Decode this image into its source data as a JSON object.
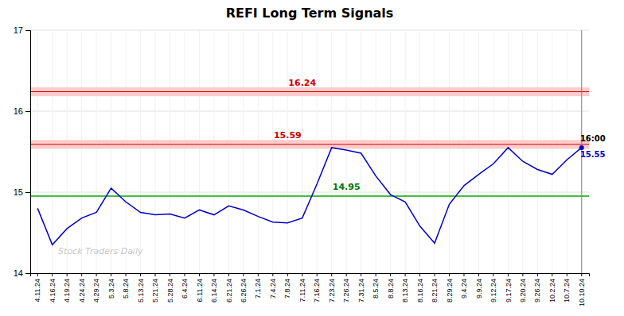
{
  "chart_data": {
    "type": "line",
    "title": "REFI Long Term Signals",
    "watermark": "Stock Traders Daily",
    "categories": [
      "4.11.24",
      "4.16.24",
      "4.19.24",
      "4.24.24",
      "4.29.24",
      "5.3.24",
      "5.8.24",
      "5.13.24",
      "5.21.24",
      "5.28.24",
      "6.4.24",
      "6.11.24",
      "6.14.24",
      "6.21.24",
      "6.26.24",
      "7.1.24",
      "7.4.24",
      "7.8.24",
      "7.11.24",
      "7.16.24",
      "7.23.24",
      "7.26.24",
      "7.31.24",
      "8.5.24",
      "8.8.24",
      "8.13.24",
      "8.16.24",
      "8.21.24",
      "8.29.24",
      "9.4.24",
      "9.9.24",
      "9.12.24",
      "9.17.24",
      "9.20.24",
      "9.26.24",
      "10.2.24",
      "10.7.24",
      "10.10.24"
    ],
    "values": [
      14.8,
      14.35,
      14.55,
      14.68,
      14.75,
      15.05,
      14.88,
      14.75,
      14.72,
      14.73,
      14.68,
      14.78,
      14.72,
      14.83,
      14.78,
      14.7,
      14.63,
      14.62,
      14.68,
      15.1,
      15.55,
      15.52,
      15.48,
      15.2,
      14.97,
      14.88,
      14.58,
      14.37,
      14.85,
      15.08,
      15.22,
      15.35,
      15.55,
      15.38,
      15.28,
      15.22,
      15.4,
      15.55
    ],
    "color": "#0000cc",
    "ylim": [
      14,
      17
    ],
    "yticks": [
      14,
      15,
      16,
      17
    ],
    "grid": true,
    "hlines": [
      {
        "y": 16.24,
        "color": "#cc0000",
        "fill_color": "#ffcccc"
      },
      {
        "y": 15.59,
        "color": "#cc0000",
        "fill_color": "#ffcccc"
      },
      {
        "y": 14.95,
        "color": "#00aa00"
      }
    ],
    "vlines": [
      {
        "x": "10.10.24",
        "color": "#808080"
      }
    ],
    "annotations": [
      {
        "text": "16.24",
        "x": "7.11.24",
        "y": 16.24,
        "color": "#cc0000",
        "position": "above"
      },
      {
        "text": "15.59",
        "x": "7.8.24",
        "y": 15.59,
        "color": "#cc0000",
        "position": "above"
      },
      {
        "text": "14.95",
        "x": "7.26.24",
        "y": 14.95,
        "color": "#007700",
        "position": "above"
      },
      {
        "text": "16:00",
        "x": "10.10.24",
        "y": 15.55,
        "color": "#000000",
        "position": "above-right"
      },
      {
        "text": "15.55",
        "x": "10.10.24",
        "y": 15.55,
        "color": "#0000cc",
        "position": "below-right"
      }
    ]
  }
}
